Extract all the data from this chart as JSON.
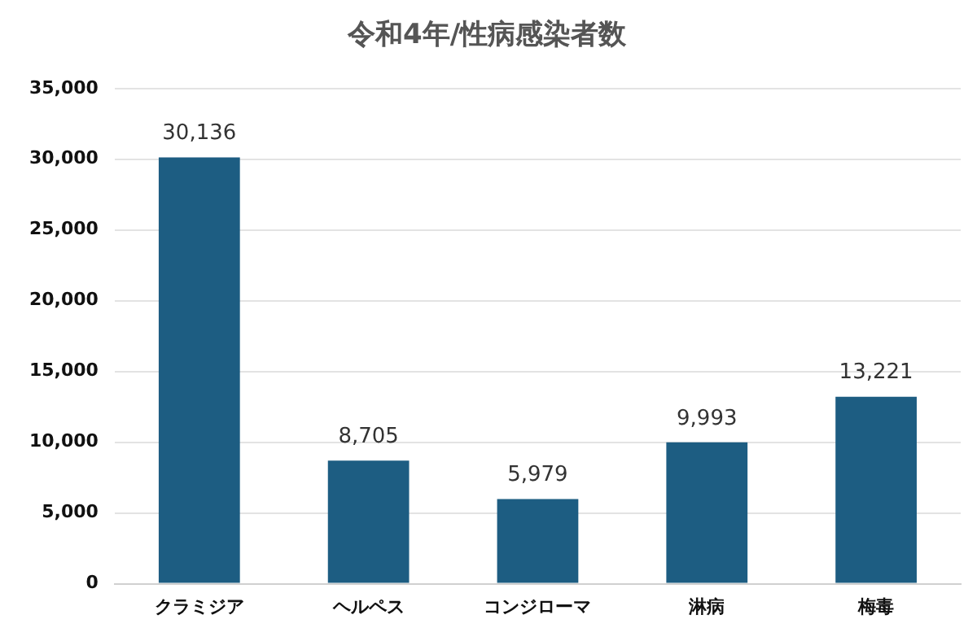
{
  "chart_data": {
    "type": "bar",
    "title": "令和4年/性病感染者数",
    "categories": [
      "クラミジア",
      "ヘルペス",
      "コンジローマ",
      "淋病",
      "梅毒"
    ],
    "values": [
      30136,
      8705,
      5979,
      9993,
      13221
    ],
    "value_labels": [
      "30,136",
      "8,705",
      "5,979",
      "9,993",
      "13,221"
    ],
    "color": "#1d5d82",
    "ylim": [
      0,
      35000
    ],
    "yticks": [
      0,
      {
        "value": 5000,
        "label": "5,000"
      },
      {
        "value": 10000,
        "label": "10,000"
      },
      {
        "value": 15000,
        "label": "15,000"
      },
      {
        "value": 20000,
        "label": "20,000"
      },
      {
        "value": 25000,
        "label": "25,000"
      },
      {
        "value": 30000,
        "label": "30,000"
      },
      {
        "value": 35000,
        "label": "35,000"
      }
    ],
    "grid": "y",
    "legend": false
  }
}
